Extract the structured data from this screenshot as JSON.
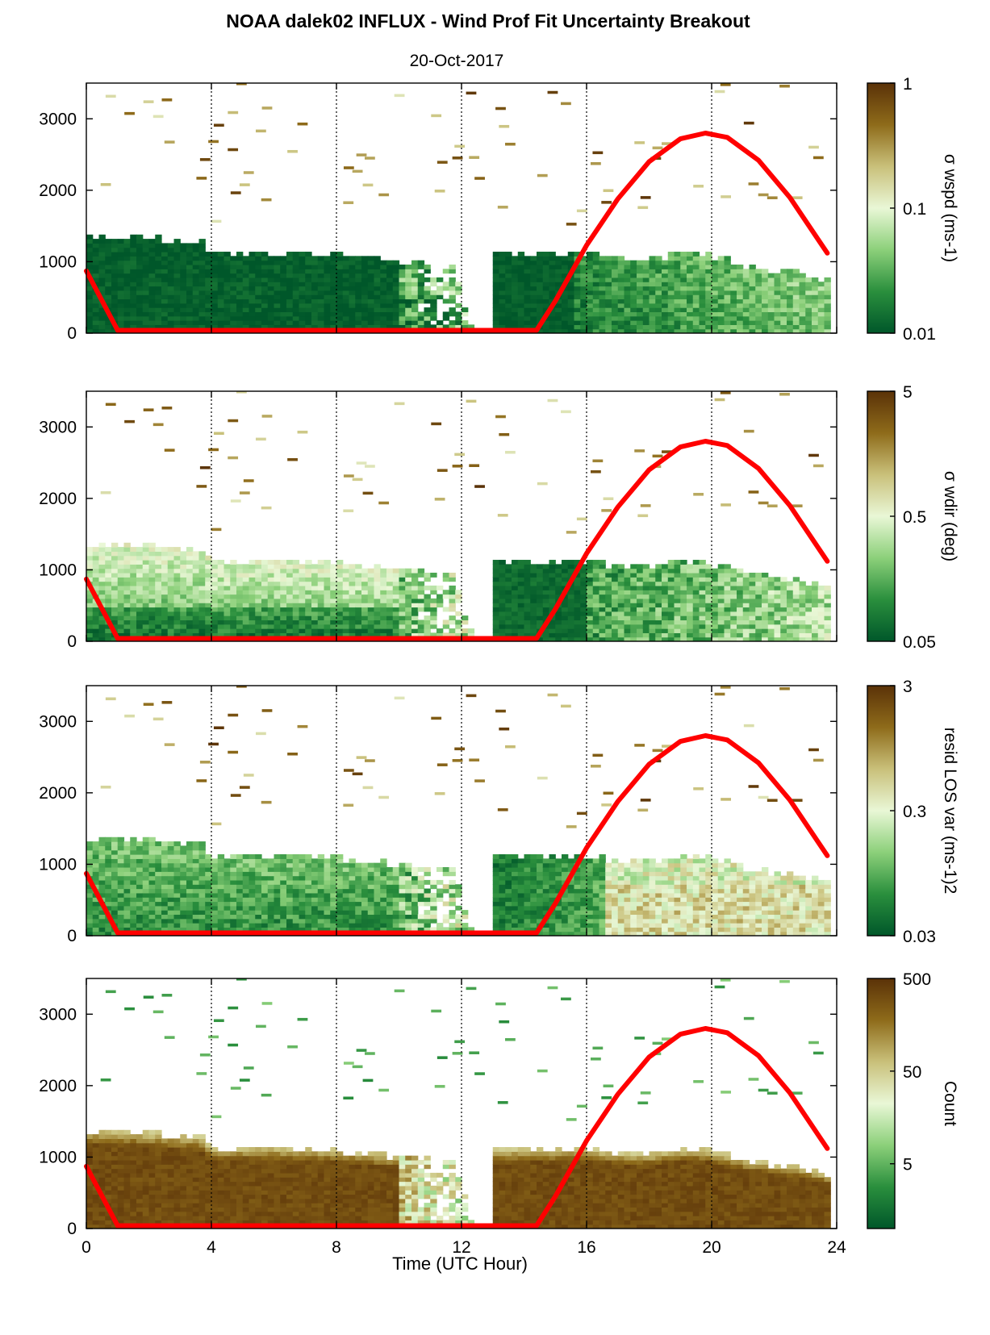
{
  "figure": {
    "title": "NOAA dalek02 INFLUX - Wind Prof Fit Uncertainty Breakout",
    "subtitle": "20-Oct-2017",
    "xlabel": "Time (UTC Hour)"
  },
  "chart_data": [
    {
      "type": "heatmap",
      "colorbar_label": "σ wspd (ms-1)",
      "colorbar_scale": "log",
      "clim": [
        0.01,
        1
      ],
      "colorbar_ticks": [
        "0.01",
        "0.1",
        "1"
      ],
      "profile": "A",
      "x_range": [
        0,
        24
      ],
      "y_range": [
        0,
        3500
      ],
      "xticks": [
        "0",
        "4",
        "8",
        "12",
        "16",
        "20",
        "24"
      ],
      "yticks": [
        "0",
        "1000",
        "2000",
        "3000"
      ]
    },
    {
      "type": "heatmap",
      "colorbar_label": "σ wdir (deg)",
      "colorbar_scale": "log",
      "clim": [
        0.05,
        5
      ],
      "colorbar_ticks": [
        "0.05",
        "0.5",
        "5"
      ],
      "profile": "B",
      "x_range": [
        0,
        24
      ],
      "y_range": [
        0,
        3500
      ],
      "xticks": [
        "0",
        "4",
        "8",
        "12",
        "16",
        "20",
        "24"
      ],
      "yticks": [
        "0",
        "1000",
        "2000",
        "3000"
      ]
    },
    {
      "type": "heatmap",
      "colorbar_label": "resid LOS var (ms-1)2",
      "colorbar_scale": "log",
      "clim": [
        0.03,
        3
      ],
      "colorbar_ticks": [
        "0.03",
        "0.3",
        "3"
      ],
      "profile": "C",
      "x_range": [
        0,
        24
      ],
      "y_range": [
        0,
        3500
      ],
      "xticks": [
        "0",
        "4",
        "8",
        "12",
        "16",
        "20",
        "24"
      ],
      "yticks": [
        "0",
        "1000",
        "2000",
        "3000"
      ]
    },
    {
      "type": "heatmap",
      "colorbar_label": "Count",
      "colorbar_scale": "log",
      "clim": [
        1,
        500
      ],
      "colorbar_ticks": [
        "5",
        "50",
        "500"
      ],
      "profile": "D",
      "x_range": [
        0,
        24
      ],
      "y_range": [
        0,
        3500
      ],
      "xticks": [
        "0",
        "4",
        "8",
        "12",
        "16",
        "20",
        "24"
      ],
      "yticks": [
        "0",
        "1000",
        "2000",
        "3000"
      ]
    }
  ],
  "shared": {
    "boundary_layer_top": {
      "hours": [
        0,
        1,
        2,
        3,
        3.7,
        4,
        6,
        8,
        10,
        11,
        11.8,
        12.3,
        13,
        13.1,
        14,
        15,
        16,
        17,
        18,
        19,
        19.9,
        21,
        22,
        23,
        23.7
      ],
      "heights": [
        1380,
        1370,
        1330,
        1300,
        1280,
        1130,
        1130,
        1090,
        1000,
        960,
        900,
        150,
        150,
        1100,
        1100,
        1100,
        1110,
        1060,
        1040,
        1100,
        1100,
        960,
        890,
        830,
        750
      ]
    },
    "gap_hours": [
      12.45,
      13.0
    ],
    "red_line": {
      "color": "#ff0000",
      "hours": [
        0,
        1,
        14.4,
        15.0,
        16.0,
        17.0,
        18.0,
        19.0,
        19.8,
        20.5,
        21.5,
        22.5,
        23.7
      ],
      "heights": [
        870,
        40,
        40,
        450,
        1230,
        1880,
        2400,
        2720,
        2800,
        2740,
        2420,
        1900,
        1120
      ]
    },
    "colormap": [
      "#00572a",
      "#2a8f3d",
      "#8cd07a",
      "#e9f7d6",
      "#c9c07a",
      "#8e6b1a",
      "#5a3208"
    ]
  }
}
